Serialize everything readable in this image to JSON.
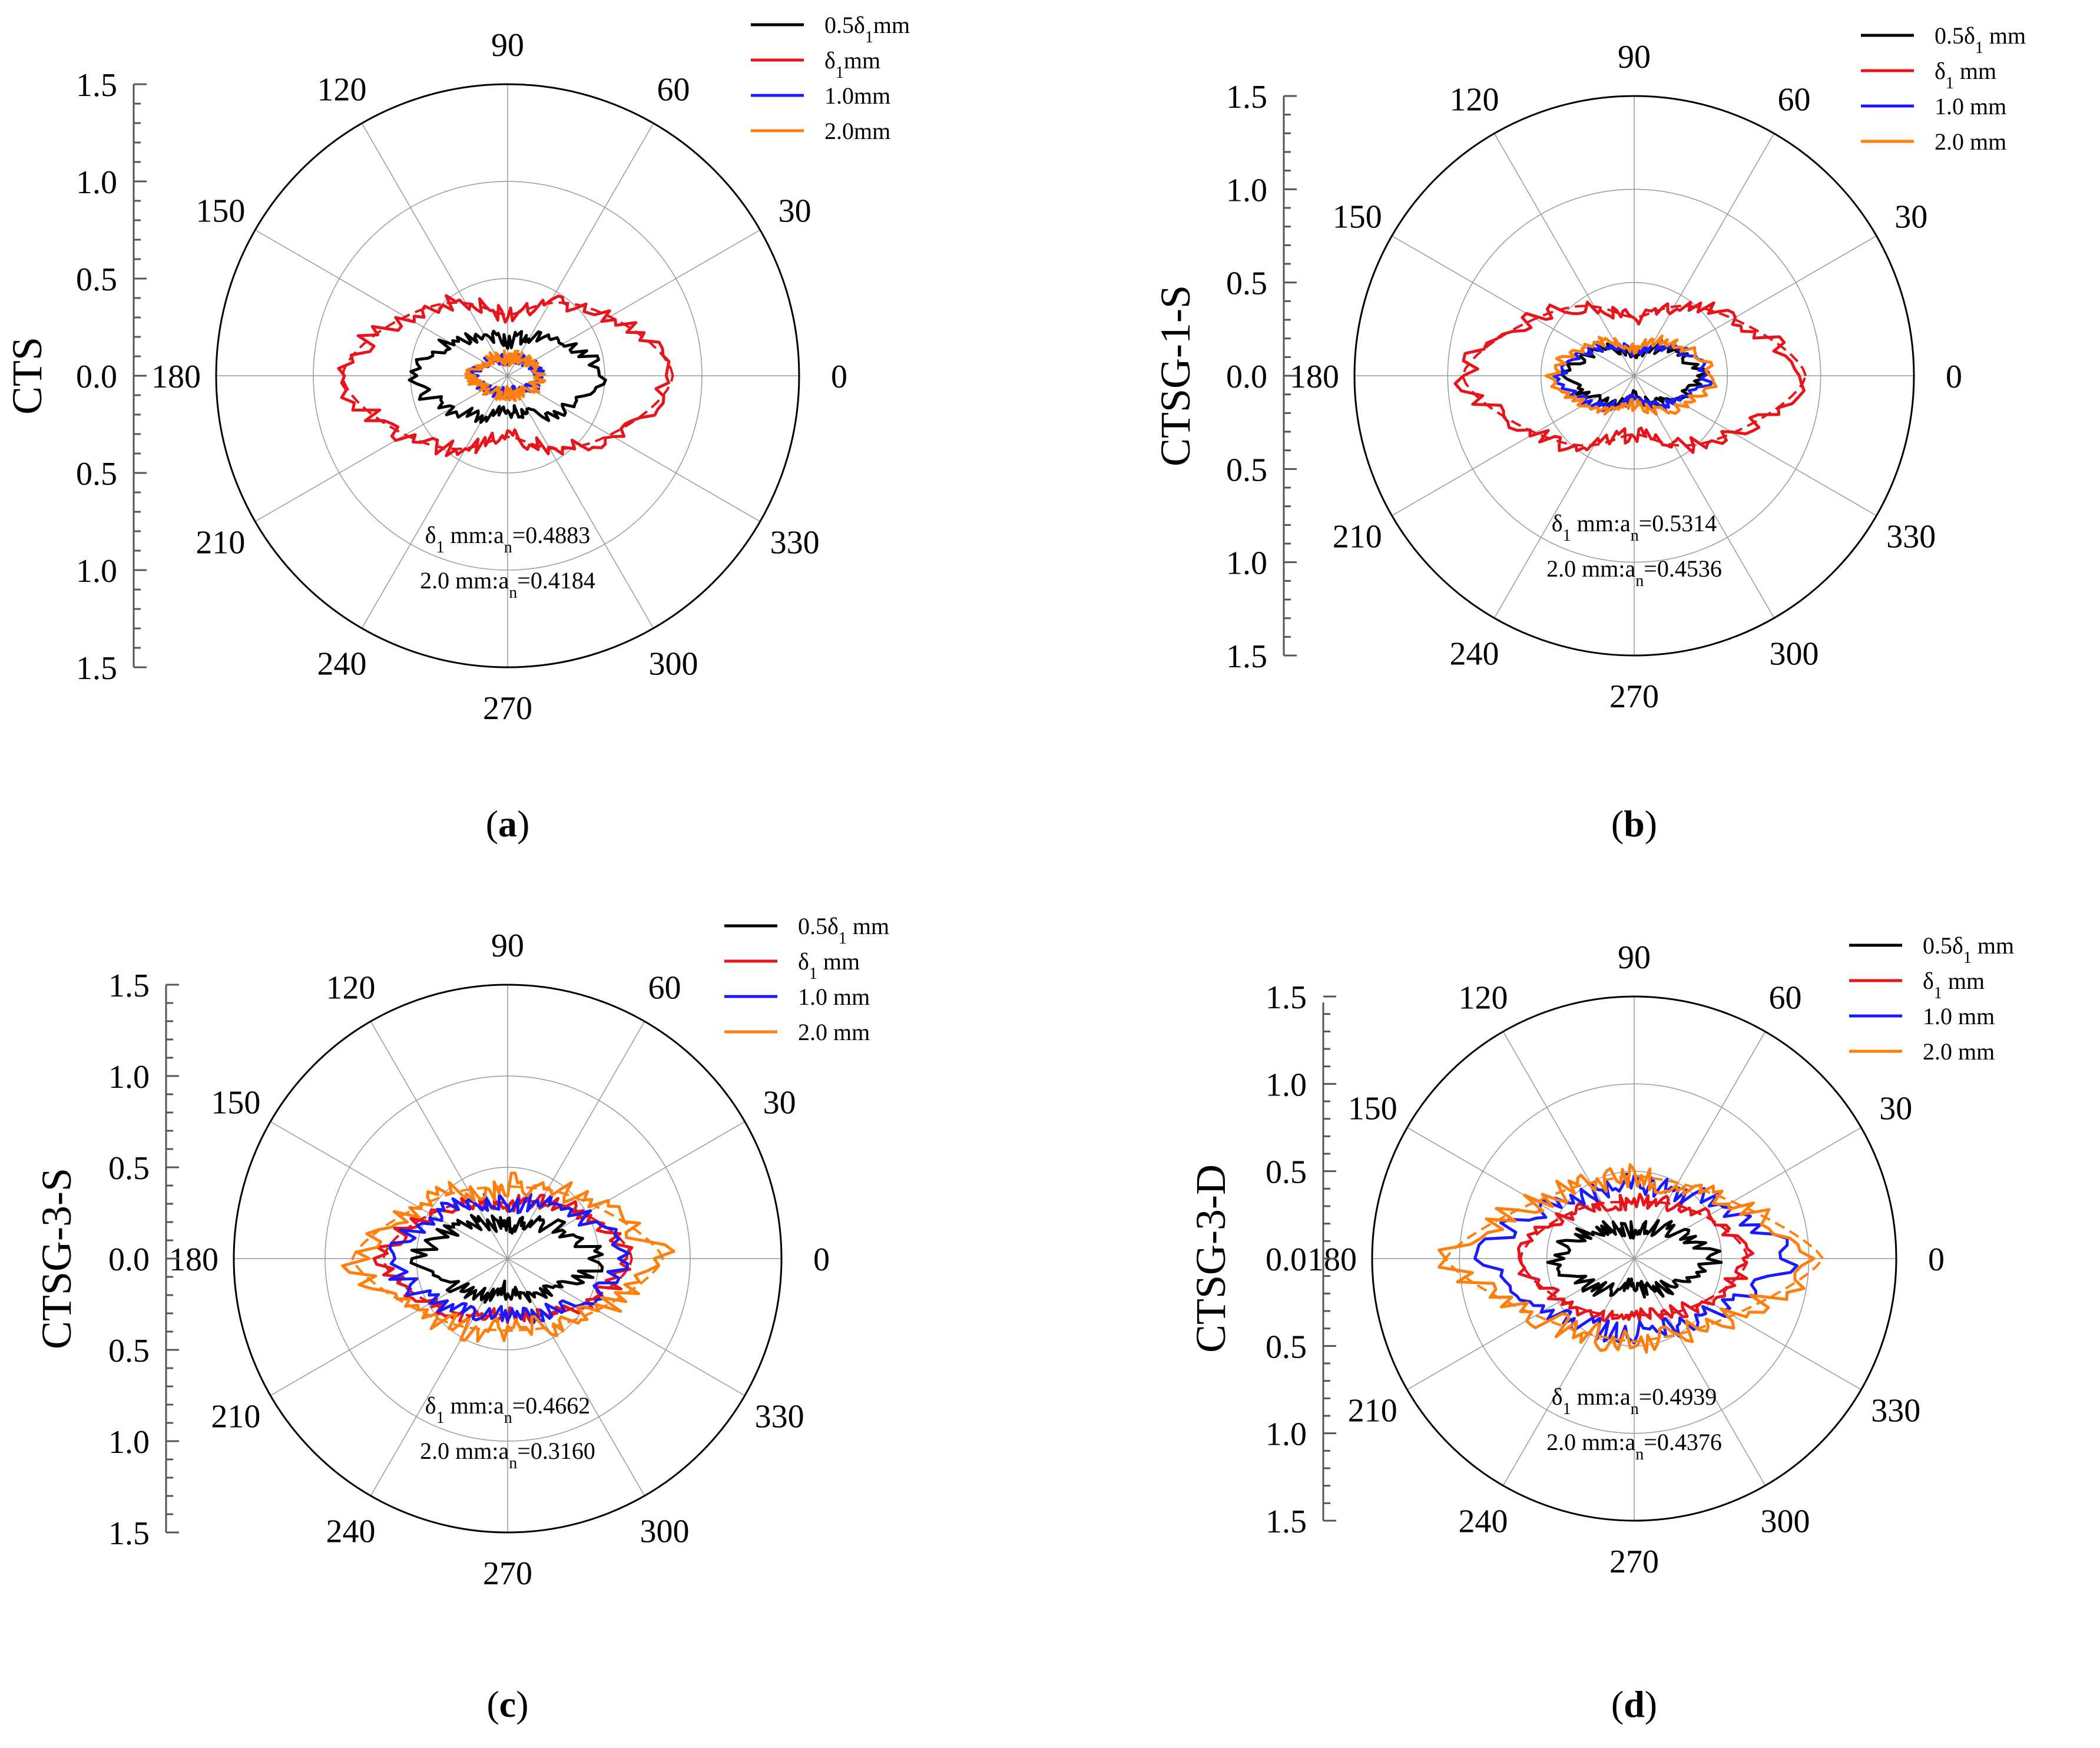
{
  "chart_data": [
    {
      "type": "polar-line",
      "panel_label": "a",
      "ylabel": "CTS",
      "rlim": [
        0,
        1.5
      ],
      "radial_ticks_top": [
        "1.5",
        "1.0",
        "0.5",
        "0.0"
      ],
      "radial_ticks_bottom": [
        "0.5",
        "1.0",
        "1.5"
      ],
      "angle_labels": [
        "0",
        "30",
        "60",
        "90",
        "120",
        "150",
        "180",
        "210",
        "240",
        "270",
        "300",
        "330"
      ],
      "legend": [
        "0.5δ1mm",
        "δ1mm",
        "1.0mm",
        "2.0mm"
      ],
      "annotations": [
        "δ1 mm:an=0.4883",
        "2.0 mm:an=0.4184"
      ],
      "series": [
        {
          "name": "0.5δ1mm",
          "color": "#000000",
          "a": 0.5,
          "b": 0.24,
          "p": 1.6,
          "waist": 0.25,
          "noise": 0.06,
          "seed": 11
        },
        {
          "name": "δ1mm",
          "color": "#e8141b",
          "a": 0.85,
          "b": 0.45,
          "p": 1.6,
          "waist": 0.3,
          "noise": 0.06,
          "seed": 23,
          "fit": true
        },
        {
          "name": "1.0mm",
          "color": "#1a1aff",
          "a": 0.17,
          "b": 0.09,
          "p": 1.8,
          "waist": 0.1,
          "noise": 0.05,
          "seed": 31
        },
        {
          "name": "2.0mm",
          "color": "#ff7f0e",
          "a": 0.18,
          "b": 0.1,
          "p": 1.8,
          "waist": 0.1,
          "noise": 0.06,
          "seed": 37
        }
      ]
    },
    {
      "type": "polar-line",
      "panel_label": "b",
      "ylabel": "CTSG-1-S",
      "rlim": [
        0,
        1.5
      ],
      "radial_ticks_top": [
        "1.5",
        "1.0",
        "0.5",
        "0.0"
      ],
      "radial_ticks_bottom": [
        "0.5",
        "1.0",
        "1.5"
      ],
      "angle_labels": [
        "0",
        "30",
        "60",
        "90",
        "120",
        "150",
        "180",
        "210",
        "240",
        "270",
        "300",
        "330"
      ],
      "legend": [
        "0.5δ1 mm",
        "δ1 mm",
        "1.0 mm",
        "2.0 mm"
      ],
      "annotations": [
        "δ1 mm:an=0.5314",
        "2.0 mm:an=0.4536"
      ],
      "series": [
        {
          "name": "0.5δ1 mm",
          "color": "#000000",
          "a": 0.36,
          "b": 0.17,
          "p": 1.7,
          "waist": 0.35,
          "noise": 0.05,
          "seed": 41
        },
        {
          "name": "δ1 mm",
          "color": "#e8141b",
          "a": 0.92,
          "b": 0.45,
          "p": 1.5,
          "waist": 0.3,
          "noise": 0.06,
          "seed": 43,
          "fit": true
        },
        {
          "name": "1.0 mm",
          "color": "#1a1aff",
          "a": 0.4,
          "b": 0.19,
          "p": 1.7,
          "waist": 0.35,
          "noise": 0.05,
          "seed": 47
        },
        {
          "name": "2.0 mm",
          "color": "#ff7f0e",
          "a": 0.43,
          "b": 0.22,
          "p": 1.7,
          "waist": 0.3,
          "noise": 0.05,
          "seed": 53
        }
      ]
    },
    {
      "type": "polar-line",
      "panel_label": "c",
      "ylabel": "CTSG-3-S",
      "rlim": [
        0,
        1.5
      ],
      "radial_ticks_top": [
        "1.5",
        "1.0",
        "0.5",
        "0.0"
      ],
      "radial_ticks_bottom": [
        "0.5",
        "1.0",
        "1.5"
      ],
      "angle_labels": [
        "0",
        "30",
        "60",
        "90",
        "120",
        "150",
        "180",
        "210",
        "240",
        "270",
        "300",
        "330"
      ],
      "legend": [
        "0.5δ1 mm",
        "δ1 mm",
        "1.0 mm",
        "2.0 mm"
      ],
      "annotations": [
        "δ1 mm:an=0.4662",
        "2.0 mm:an=0.3160"
      ],
      "series": [
        {
          "name": "0.5δ1 mm",
          "color": "#000000",
          "a": 0.48,
          "b": 0.22,
          "p": 1.7,
          "waist": 0.2,
          "noise": 0.08,
          "seed": 61
        },
        {
          "name": "δ1 mm",
          "color": "#e8141b",
          "a": 0.68,
          "b": 0.36,
          "p": 1.6,
          "waist": 0.15,
          "noise": 0.06,
          "seed": 67,
          "fit": true
        },
        {
          "name": "1.0 mm",
          "color": "#1a1aff",
          "a": 0.64,
          "b": 0.35,
          "p": 1.6,
          "waist": 0.15,
          "noise": 0.07,
          "seed": 71
        },
        {
          "name": "2.0 mm",
          "color": "#ff7f0e",
          "a": 0.85,
          "b": 0.44,
          "p": 1.4,
          "waist": 0.1,
          "noise": 0.09,
          "seed": 73,
          "fit": true
        }
      ]
    },
    {
      "type": "polar-line",
      "panel_label": "d",
      "ylabel": "CTSG-3-D",
      "rlim": [
        0,
        1.5
      ],
      "radial_ticks_top": [
        "1.5",
        "1.0",
        "0.5",
        "0.0"
      ],
      "radial_ticks_bottom": [
        "0.5",
        "1.0",
        "1.5"
      ],
      "angle_labels": [
        "0",
        "30",
        "60",
        "90",
        "120",
        "150",
        "180",
        "210",
        "240",
        "270",
        "300",
        "330"
      ],
      "legend": [
        "0.5δ1 mm",
        "δ1 mm",
        "1.0 mm",
        "2.0 mm"
      ],
      "annotations": [
        "δ1 mm:an=0.4939",
        "2.0 mm:an=0.4376"
      ],
      "series": [
        {
          "name": "0.5δ1 mm",
          "color": "#000000",
          "a": 0.45,
          "b": 0.2,
          "p": 1.7,
          "waist": 0.2,
          "noise": 0.08,
          "seed": 79
        },
        {
          "name": "δ1 mm",
          "color": "#e8141b",
          "a": 0.65,
          "b": 0.36,
          "p": 1.6,
          "waist": 0.1,
          "noise": 0.06,
          "seed": 83,
          "fit": true
        },
        {
          "name": "1.0 mm",
          "color": "#1a1aff",
          "a": 0.88,
          "b": 0.45,
          "p": 1.4,
          "waist": 0.05,
          "noise": 0.08,
          "seed": 89
        },
        {
          "name": "2.0 mm",
          "color": "#ff7f0e",
          "a": 1.08,
          "b": 0.5,
          "p": 1.3,
          "waist": 0.05,
          "noise": 0.09,
          "seed": 97,
          "fit": true
        }
      ]
    }
  ]
}
